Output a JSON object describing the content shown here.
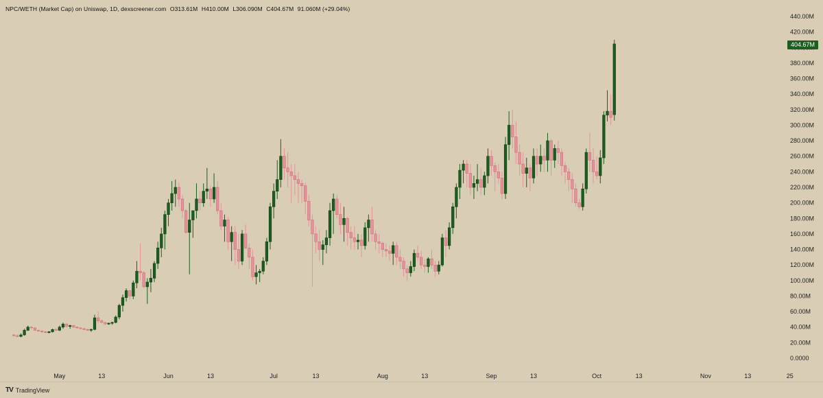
{
  "header": {
    "symbol": "NPC/WETH (Market Cap) on Uniswap, 1D, dexscreener.com",
    "open": "O313.61M",
    "high": "H410.00M",
    "low": "L306.090M",
    "close": "C404.67M",
    "change": "91.060M (+29.04%)"
  },
  "last_price_label": "404.67M",
  "brand": {
    "name": "TradingView",
    "logo": "TV"
  },
  "colors": {
    "background": "#d9cdb6",
    "up": "#1b5e20",
    "down": "#e8919a",
    "badge": "#1b5e20"
  },
  "chart_data": {
    "type": "candlestick",
    "title": "NPC/WETH (Market Cap) on Uniswap, 1D, dexscreener.com",
    "ylim": [
      0,
      440
    ],
    "y_unit": "M",
    "y_ticks": [
      "0.0000",
      "20.00M",
      "40.00M",
      "60.00M",
      "80.00M",
      "100.00M",
      "120.00M",
      "140.00M",
      "160.00M",
      "180.00M",
      "200.00M",
      "220.00M",
      "240.00M",
      "260.00M",
      "280.00M",
      "300.00M",
      "320.00M",
      "340.00M",
      "360.00M",
      "380.00M",
      "400.00M",
      "420.00M",
      "440.00M"
    ],
    "x_ticks": [
      {
        "label": "May",
        "day": 0
      },
      {
        "label": "13",
        "day": 12
      },
      {
        "label": "Jun",
        "day": 31
      },
      {
        "label": "13",
        "day": 43
      },
      {
        "label": "Jul",
        "day": 61
      },
      {
        "label": "13",
        "day": 73
      },
      {
        "label": "Aug",
        "day": 92
      },
      {
        "label": "13",
        "day": 104
      },
      {
        "label": "Sep",
        "day": 123
      },
      {
        "label": "13",
        "day": 135
      },
      {
        "label": "Oct",
        "day": 153
      },
      {
        "label": "13",
        "day": 165
      },
      {
        "label": "Nov",
        "day": 184
      },
      {
        "label": "13",
        "day": 196
      },
      {
        "label": "25",
        "day": 208
      }
    ],
    "first_day": -13,
    "ohlc": [
      [
        30,
        31,
        28,
        29
      ],
      [
        29,
        31,
        27,
        28
      ],
      [
        28,
        32,
        27,
        30
      ],
      [
        30,
        38,
        29,
        36
      ],
      [
        36,
        42,
        35,
        40
      ],
      [
        40,
        41,
        37,
        39
      ],
      [
        39,
        40,
        35,
        36
      ],
      [
        36,
        37,
        34,
        35
      ],
      [
        35,
        36,
        32,
        34
      ],
      [
        34,
        35,
        32,
        33
      ],
      [
        33,
        35,
        32,
        34
      ],
      [
        34,
        38,
        33,
        37
      ],
      [
        37,
        39,
        35,
        36
      ],
      [
        36,
        42,
        35,
        40
      ],
      [
        40,
        46,
        38,
        44
      ],
      [
        44,
        45,
        39,
        41
      ],
      [
        41,
        43,
        38,
        42
      ],
      [
        42,
        43,
        39,
        40
      ],
      [
        40,
        41,
        38,
        39
      ],
      [
        39,
        40,
        37,
        38
      ],
      [
        38,
        39,
        36,
        37
      ],
      [
        37,
        38,
        35,
        36
      ],
      [
        36,
        38,
        34,
        37
      ],
      [
        37,
        56,
        36,
        52
      ],
      [
        52,
        60,
        45,
        48
      ],
      [
        48,
        50,
        45,
        46
      ],
      [
        46,
        47,
        43,
        44
      ],
      [
        44,
        46,
        43,
        45
      ],
      [
        45,
        47,
        43,
        46
      ],
      [
        46,
        55,
        45,
        53
      ],
      [
        53,
        70,
        50,
        68
      ],
      [
        68,
        82,
        60,
        78
      ],
      [
        78,
        90,
        73,
        87
      ],
      [
        87,
        88,
        75,
        80
      ],
      [
        80,
        100,
        76,
        97
      ],
      [
        97,
        125,
        90,
        112
      ],
      [
        112,
        148,
        100,
        110
      ],
      [
        110,
        112,
        90,
        92
      ],
      [
        92,
        103,
        70,
        98
      ],
      [
        98,
        115,
        85,
        103
      ],
      [
        103,
        125,
        98,
        122
      ],
      [
        122,
        150,
        115,
        142
      ],
      [
        142,
        168,
        130,
        160
      ],
      [
        160,
        190,
        140,
        185
      ],
      [
        185,
        205,
        170,
        200
      ],
      [
        200,
        228,
        190,
        212
      ],
      [
        212,
        230,
        195,
        220
      ],
      [
        220,
        226,
        195,
        205
      ],
      [
        205,
        210,
        180,
        190
      ],
      [
        190,
        192,
        160,
        162
      ],
      [
        162,
        200,
        108,
        178
      ],
      [
        178,
        190,
        155,
        190
      ],
      [
        190,
        225,
        180,
        205
      ],
      [
        205,
        215,
        190,
        200
      ],
      [
        200,
        225,
        195,
        215
      ],
      [
        215,
        245,
        205,
        218
      ],
      [
        218,
        222,
        195,
        205
      ],
      [
        205,
        238,
        200,
        220
      ],
      [
        220,
        228,
        185,
        190
      ],
      [
        190,
        200,
        165,
        170
      ],
      [
        170,
        185,
        150,
        178
      ],
      [
        178,
        182,
        140,
        150
      ],
      [
        150,
        170,
        125,
        162
      ],
      [
        162,
        170,
        120,
        140
      ],
      [
        140,
        160,
        115,
        125
      ],
      [
        125,
        165,
        120,
        160
      ],
      [
        160,
        172,
        140,
        142
      ],
      [
        142,
        148,
        115,
        130
      ],
      [
        130,
        140,
        100,
        105
      ],
      [
        105,
        120,
        95,
        110
      ],
      [
        110,
        115,
        98,
        112
      ],
      [
        112,
        130,
        108,
        125
      ],
      [
        125,
        155,
        120,
        150
      ],
      [
        150,
        200,
        140,
        195
      ],
      [
        195,
        225,
        180,
        215
      ],
      [
        215,
        255,
        205,
        230
      ],
      [
        230,
        282,
        220,
        260
      ],
      [
        260,
        270,
        230,
        245
      ],
      [
        245,
        265,
        220,
        240
      ],
      [
        240,
        250,
        200,
        235
      ],
      [
        235,
        250,
        210,
        230
      ],
      [
        230,
        240,
        200,
        225
      ],
      [
        225,
        230,
        200,
        222
      ],
      [
        222,
        226,
        185,
        202
      ],
      [
        202,
        210,
        170,
        178
      ],
      [
        178,
        185,
        92,
        160
      ],
      [
        160,
        170,
        135,
        150
      ],
      [
        150,
        165,
        125,
        140
      ],
      [
        140,
        152,
        120,
        146
      ],
      [
        146,
        165,
        135,
        155
      ],
      [
        155,
        200,
        145,
        190
      ],
      [
        190,
        212,
        160,
        205
      ],
      [
        205,
        210,
        180,
        185
      ],
      [
        185,
        200,
        160,
        172
      ],
      [
        172,
        195,
        150,
        180
      ],
      [
        180,
        182,
        145,
        162
      ],
      [
        162,
        170,
        140,
        155
      ],
      [
        155,
        170,
        140,
        150
      ],
      [
        150,
        160,
        140,
        152
      ],
      [
        152,
        160,
        130,
        145
      ],
      [
        145,
        175,
        140,
        168
      ],
      [
        168,
        185,
        150,
        178
      ],
      [
        178,
        195,
        150,
        160
      ],
      [
        160,
        165,
        140,
        150
      ],
      [
        150,
        160,
        135,
        148
      ],
      [
        148,
        150,
        130,
        140
      ],
      [
        140,
        148,
        130,
        138
      ],
      [
        138,
        145,
        125,
        135
      ],
      [
        135,
        150,
        120,
        145
      ],
      [
        145,
        150,
        120,
        130
      ],
      [
        130,
        140,
        115,
        125
      ],
      [
        125,
        130,
        105,
        115
      ],
      [
        115,
        120,
        100,
        110
      ],
      [
        110,
        125,
        105,
        118
      ],
      [
        118,
        140,
        112,
        135
      ],
      [
        135,
        145,
        125,
        130
      ],
      [
        130,
        138,
        115,
        120
      ],
      [
        120,
        128,
        110,
        118
      ],
      [
        118,
        130,
        110,
        128
      ],
      [
        128,
        140,
        115,
        120
      ],
      [
        120,
        125,
        105,
        112
      ],
      [
        112,
        125,
        108,
        120
      ],
      [
        120,
        160,
        118,
        155
      ],
      [
        155,
        165,
        130,
        145
      ],
      [
        145,
        175,
        140,
        168
      ],
      [
        168,
        200,
        160,
        195
      ],
      [
        195,
        225,
        180,
        220
      ],
      [
        220,
        250,
        205,
        242
      ],
      [
        242,
        255,
        225,
        250
      ],
      [
        250,
        255,
        220,
        238
      ],
      [
        238,
        250,
        210,
        220
      ],
      [
        220,
        235,
        205,
        225
      ],
      [
        225,
        250,
        215,
        230
      ],
      [
        230,
        245,
        210,
        220
      ],
      [
        220,
        240,
        210,
        235
      ],
      [
        235,
        270,
        225,
        260
      ],
      [
        260,
        268,
        235,
        248
      ],
      [
        248,
        252,
        215,
        240
      ],
      [
        240,
        250,
        225,
        232
      ],
      [
        232,
        240,
        205,
        212
      ],
      [
        212,
        285,
        205,
        275
      ],
      [
        275,
        318,
        255,
        300
      ],
      [
        300,
        320,
        270,
        285
      ],
      [
        285,
        305,
        250,
        265
      ],
      [
        265,
        275,
        235,
        250
      ],
      [
        250,
        265,
        220,
        238
      ],
      [
        238,
        258,
        220,
        245
      ],
      [
        245,
        250,
        215,
        232
      ],
      [
        232,
        270,
        225,
        260
      ],
      [
        260,
        270,
        235,
        250
      ],
      [
        250,
        275,
        240,
        260
      ],
      [
        260,
        270,
        240,
        255
      ],
      [
        255,
        290,
        240,
        280
      ],
      [
        280,
        282,
        235,
        255
      ],
      [
        255,
        275,
        245,
        270
      ],
      [
        270,
        280,
        250,
        265
      ],
      [
        265,
        270,
        235,
        248
      ],
      [
        248,
        252,
        225,
        240
      ],
      [
        240,
        245,
        215,
        230
      ],
      [
        230,
        238,
        200,
        218
      ],
      [
        218,
        225,
        195,
        200
      ],
      [
        200,
        205,
        192,
        195
      ],
      [
        195,
        225,
        190,
        218
      ],
      [
        218,
        270,
        212,
        265
      ],
      [
        265,
        290,
        240,
        255
      ],
      [
        255,
        270,
        225,
        240
      ],
      [
        240,
        260,
        230,
        235
      ],
      [
        235,
        268,
        225,
        258
      ],
      [
        258,
        318,
        250,
        313
      ],
      [
        313,
        345,
        305,
        318
      ],
      [
        318,
        340,
        300,
        310
      ],
      [
        313.61,
        410,
        306.09,
        404.67
      ]
    ]
  }
}
